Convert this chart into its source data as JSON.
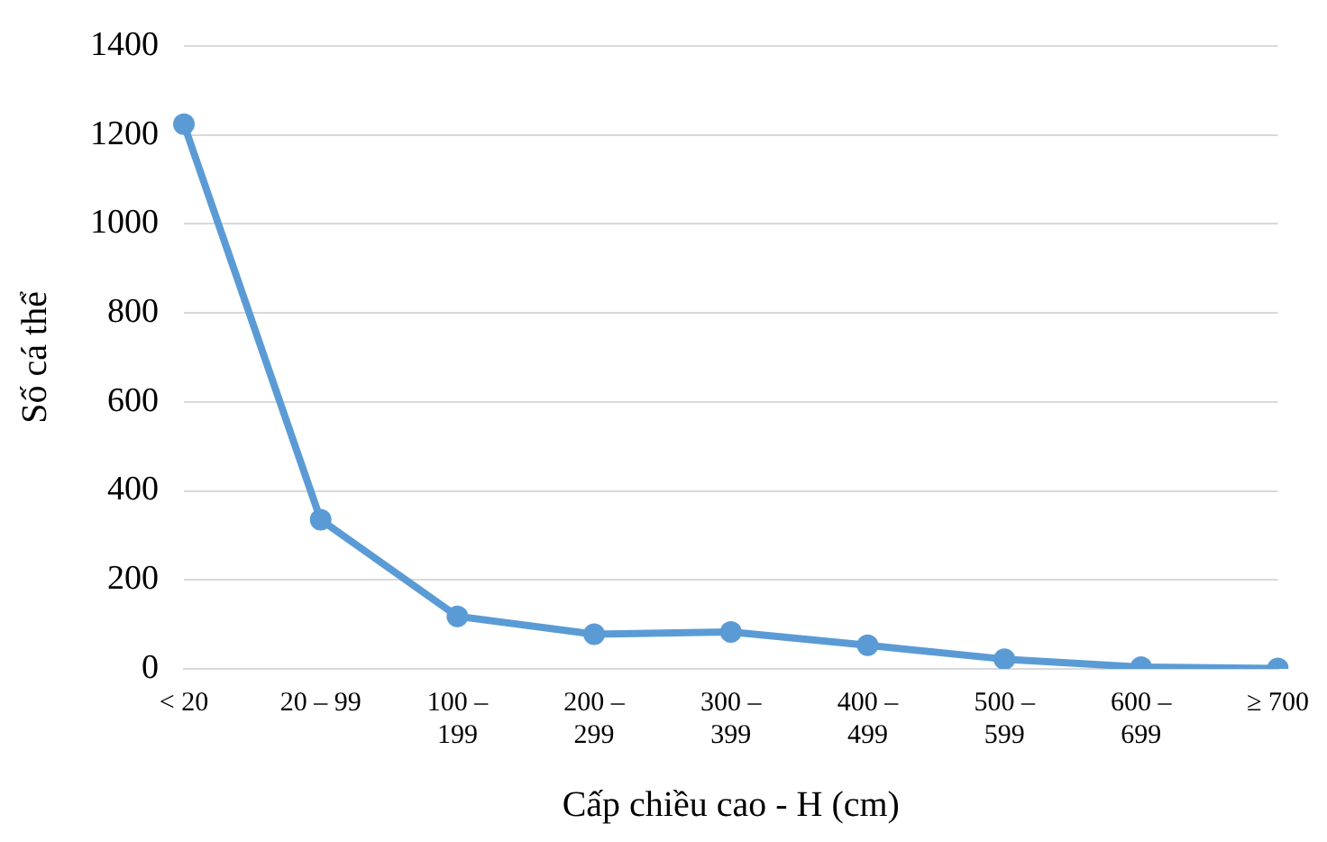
{
  "chart_data": {
    "type": "line",
    "xlabel": "Cấp chiều cao - H (cm)",
    "ylabel": "Số cá thể",
    "categories": [
      "< 20",
      "20 – 99",
      "100 – 199",
      "200 – 299",
      "300 – 399",
      "400 – 499",
      "500 – 599",
      "600 – 699",
      "≥ 700"
    ],
    "series": [
      {
        "color": "#5b9bd5",
        "values": [
          1224,
          335,
          118,
          78,
          83,
          53,
          22,
          4,
          1
        ]
      }
    ],
    "ylim": [
      0,
      1400
    ],
    "yticks": [
      0,
      200,
      400,
      600,
      800,
      1000,
      1200,
      1400
    ],
    "grid": "y",
    "legend": false,
    "marker": "circle",
    "line_style": "solid"
  }
}
